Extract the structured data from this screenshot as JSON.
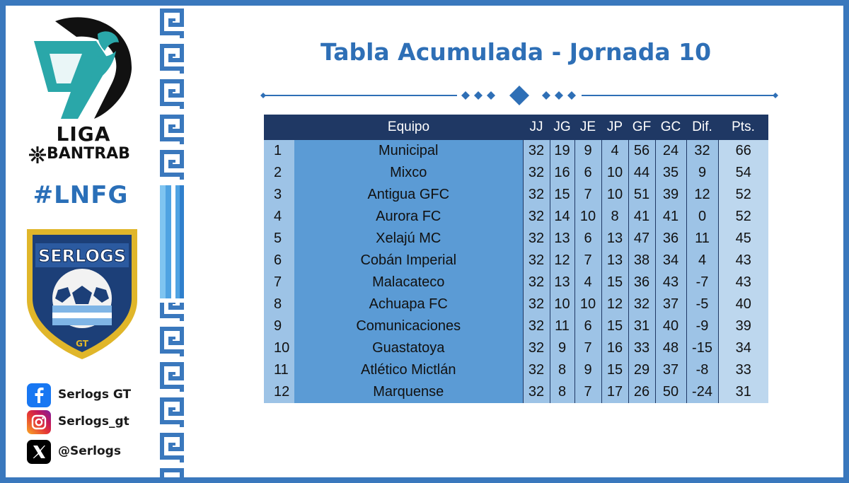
{
  "title": "Tabla Acumulada - Jornada 10",
  "league": {
    "line1": "LIGA",
    "line2": "BANTRAB"
  },
  "hashtag": "#LNFG",
  "brand": {
    "shield_text": "SERLOGS",
    "shield_sub": "GT"
  },
  "social": [
    {
      "icon": "facebook-icon",
      "label": "Serlogs GT"
    },
    {
      "icon": "instagram-icon",
      "label": "Serlogs_gt"
    },
    {
      "icon": "x-icon",
      "label": "@Serlogs"
    }
  ],
  "colors": {
    "frame": "#3a78bd",
    "title": "#2e6fb6",
    "header_bg": "#1f3864",
    "team_col": "#5b9bd5",
    "cell": "#9dc3e6",
    "pts_col": "#bdd7ee"
  },
  "table": {
    "headers": [
      "",
      "Equipo",
      "JJ",
      "JG",
      "JE",
      "JP",
      "GF",
      "GC",
      "Dif.",
      "Pts."
    ],
    "rows": [
      [
        "1",
        "Municipal",
        "32",
        "19",
        "9",
        "4",
        "56",
        "24",
        "32",
        "66"
      ],
      [
        "2",
        "Mixco",
        "32",
        "16",
        "6",
        "10",
        "44",
        "35",
        "9",
        "54"
      ],
      [
        "3",
        "Antigua GFC",
        "32",
        "15",
        "7",
        "10",
        "51",
        "39",
        "12",
        "52"
      ],
      [
        "4",
        "Aurora FC",
        "32",
        "14",
        "10",
        "8",
        "41",
        "41",
        "0",
        "52"
      ],
      [
        "5",
        "Xelajú MC",
        "32",
        "13",
        "6",
        "13",
        "47",
        "36",
        "11",
        "45"
      ],
      [
        "6",
        "Cobán Imperial",
        "32",
        "12",
        "7",
        "13",
        "38",
        "34",
        "4",
        "43"
      ],
      [
        "7",
        "Malacateco",
        "32",
        "13",
        "4",
        "15",
        "36",
        "43",
        "-7",
        "43"
      ],
      [
        "8",
        "Achuapa FC",
        "32",
        "10",
        "10",
        "12",
        "32",
        "37",
        "-5",
        "40"
      ],
      [
        "9",
        "Comunicaciones",
        "32",
        "11",
        "6",
        "15",
        "31",
        "40",
        "-9",
        "39"
      ],
      [
        "10",
        "Guastatoya",
        "32",
        "9",
        "7",
        "16",
        "33",
        "48",
        "-15",
        "34"
      ],
      [
        "11",
        "Atlético Mictlán",
        "32",
        "8",
        "9",
        "15",
        "29",
        "37",
        "-8",
        "33"
      ],
      [
        "12",
        "Marquense",
        "32",
        "8",
        "7",
        "17",
        "26",
        "50",
        "-24",
        "31"
      ]
    ]
  }
}
